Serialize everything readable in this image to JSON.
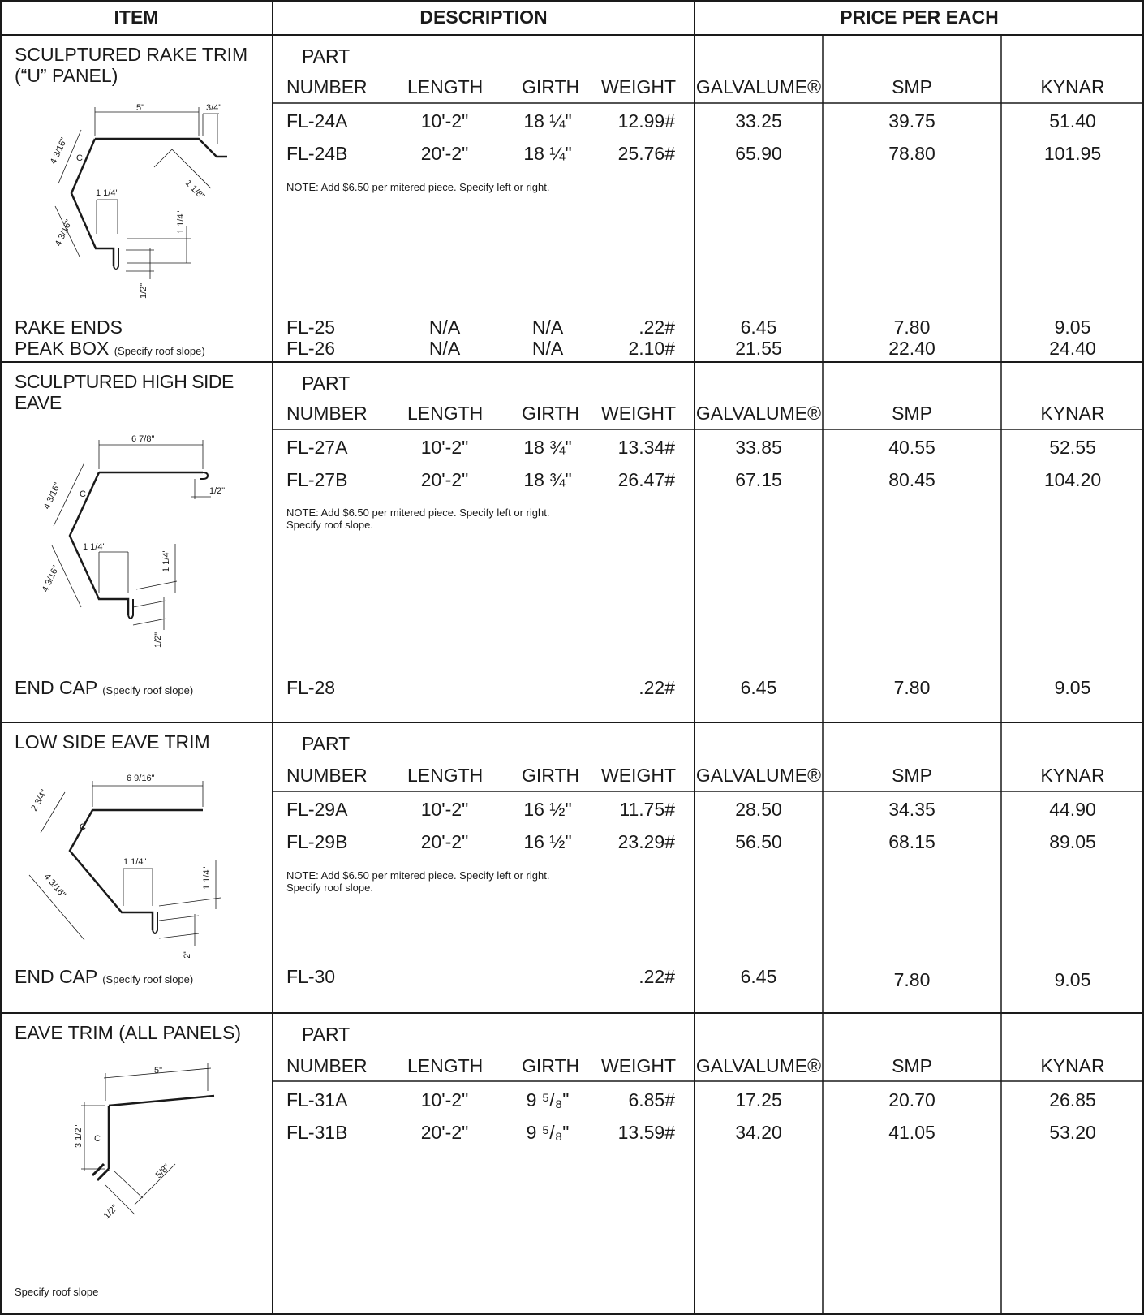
{
  "header": {
    "item": "ITEM",
    "description": "DESCRIPTION",
    "price": "PRICE PER EACH"
  },
  "col_labels": {
    "part": "PART",
    "number": "NUMBER",
    "length": "LENGTH",
    "girth": "GIRTH",
    "weight": "WEIGHT",
    "galvalume": "GALVALUME®",
    "smp": "SMP",
    "kynar": "KYNAR"
  },
  "sections": [
    {
      "title_line1": "SCULPTURED RAKE TRIM",
      "title_line2": "(“U” PANEL)",
      "rows": [
        {
          "number": "FL-24A",
          "length": "10'-2\"",
          "girth": "18 ¼\"",
          "weight": "12.99#",
          "galvalume": "33.25",
          "smp": "39.75",
          "kynar": "51.40"
        },
        {
          "number": "FL-24B",
          "length": "20'-2\"",
          "girth": "18 ¼\"",
          "weight": "25.76#",
          "galvalume": "65.90",
          "smp": "78.80",
          "kynar": "101.95"
        }
      ],
      "note": "NOTE: Add $6.50 per mitered piece. Specify left or right.",
      "drawing_dims": [
        "5\"",
        "3/4\"",
        "4 3/16\"",
        "1 1/8\"",
        "1 1/4\"",
        "4 3/16\"",
        "1 1/4\"",
        "1/2\"",
        "C"
      ],
      "extras": [
        {
          "item": "RAKE ENDS",
          "item_note": "",
          "number": "FL-25",
          "length": "N/A",
          "girth": "N/A",
          "weight": ".22#",
          "galvalume": "6.45",
          "smp": "7.80",
          "kynar": "9.05"
        },
        {
          "item": "PEAK BOX",
          "item_note": "(Specify roof slope)",
          "number": "FL-26",
          "length": "N/A",
          "girth": "N/A",
          "weight": "2.10#",
          "galvalume": "21.55",
          "smp": "22.40",
          "kynar": "24.40"
        }
      ]
    },
    {
      "title_line1": "SCULPTURED HIGH SIDE",
      "title_line2": "EAVE",
      "rows": [
        {
          "number": "FL-27A",
          "length": "10'-2\"",
          "girth": "18 ¾\"",
          "weight": "13.34#",
          "galvalume": "33.85",
          "smp": "40.55",
          "kynar": "52.55"
        },
        {
          "number": "FL-27B",
          "length": "20'-2\"",
          "girth": "18 ¾\"",
          "weight": "26.47#",
          "galvalume": "67.15",
          "smp": "80.45",
          "kynar": "104.20"
        }
      ],
      "note": "NOTE: Add $6.50 per mitered piece. Specify left or right.\nSpecify roof slope.",
      "drawing_dims": [
        "6 7/8\"",
        "4 3/16\"",
        "1/2\"",
        "1 1/4\"",
        "1 1/4\"",
        "4 3/16\"",
        "1/2\"",
        "C"
      ],
      "extras": [
        {
          "item": "END CAP",
          "item_note": "(Specify roof slope)",
          "number": "FL-28",
          "length": "",
          "girth": "",
          "weight": ".22#",
          "galvalume": "6.45",
          "smp": "7.80",
          "kynar": "9.05"
        }
      ]
    },
    {
      "title_line1": "LOW SIDE EAVE TRIM",
      "title_line2": "",
      "rows": [
        {
          "number": "FL-29A",
          "length": "10'-2\"",
          "girth": "16 ½\"",
          "weight": "11.75#",
          "galvalume": "28.50",
          "smp": "34.35",
          "kynar": "44.90"
        },
        {
          "number": "FL-29B",
          "length": "20'-2\"",
          "girth": "16 ½\"",
          "weight": "23.29#",
          "galvalume": "56.50",
          "smp": "68.15",
          "kynar": "89.05"
        }
      ],
      "note": "NOTE: Add $6.50 per mitered piece. Specify left or right.\nSpecify roof slope.",
      "drawing_dims": [
        "6 9/16\"",
        "2 3/4\"",
        "1 1/4\"",
        "4 3/16\"",
        "1 1/4\"",
        "1/2\"",
        "C"
      ],
      "extras": [
        {
          "item": "END CAP",
          "item_note": "(Specify roof slope)",
          "number": "FL-30",
          "length": "",
          "girth": "",
          "weight": ".22#",
          "galvalume": "6.45",
          "smp": "7.80",
          "kynar": "9.05"
        }
      ]
    },
    {
      "title_line1": "EAVE TRIM (ALL PANELS)",
      "title_line2": "",
      "rows": [
        {
          "number": "FL-31A",
          "length": "10'-2\"",
          "girth": "9 ⁵/₈\"",
          "weight": "6.85#",
          "galvalume": "17.25",
          "smp": "20.70",
          "kynar": "26.85"
        },
        {
          "number": "FL-31B",
          "length": "20'-2\"",
          "girth": "9 ⁵/₈\"",
          "weight": "13.59#",
          "galvalume": "34.20",
          "smp": "41.05",
          "kynar": "53.20"
        }
      ],
      "note": "",
      "drawing_dims": [
        "5\"",
        "3 1/2\"",
        "5/8\"",
        "1/2\"",
        "C"
      ],
      "footer_note": "Specify roof slope",
      "extras": []
    }
  ]
}
